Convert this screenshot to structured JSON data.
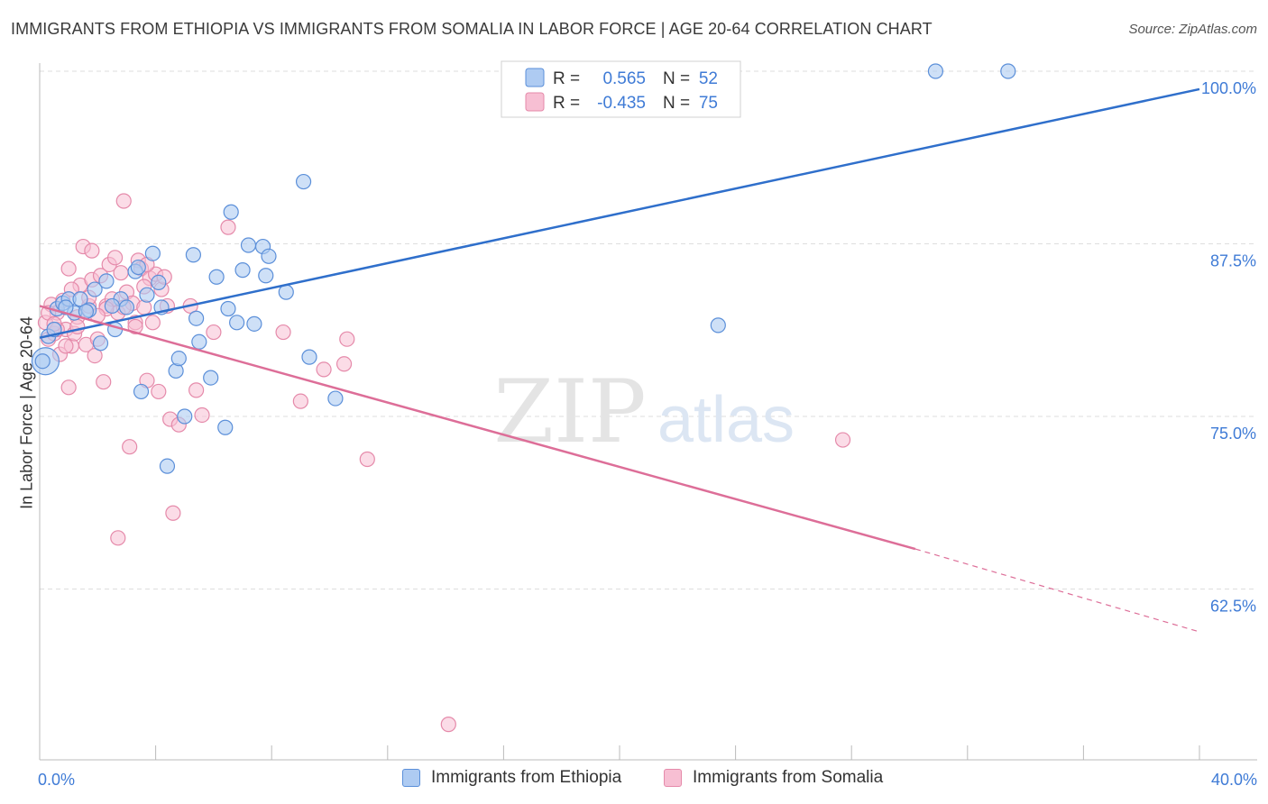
{
  "header": {
    "title": "IMMIGRANTS FROM ETHIOPIA VS IMMIGRANTS FROM SOMALIA IN LABOR FORCE | AGE 20-64 CORRELATION CHART",
    "source": "Source: ZipAtlas.com"
  },
  "watermark": {
    "zip": "ZIP",
    "atlas": "atlas"
  },
  "colors": {
    "ethiopia_fill": "#aecbf2",
    "ethiopia_stroke": "#5b8fd9",
    "ethiopia_line": "#2f6fcb",
    "somalia_fill": "#f7bfd3",
    "somalia_stroke": "#e58aaa",
    "somalia_line": "#dd6e98",
    "axis_label": "#3f7bd6",
    "grid": "#dddddd"
  },
  "legend_top": {
    "rows": [
      {
        "r_label": "R =",
        "r_value": "0.565",
        "n_label": "N =",
        "n_value": "52"
      },
      {
        "r_label": "R =",
        "r_value": "-0.435",
        "n_label": "N =",
        "n_value": "75"
      }
    ]
  },
  "legend_bottom": {
    "items": [
      {
        "label": "Immigrants from Ethiopia"
      },
      {
        "label": "Immigrants from Somalia"
      }
    ]
  },
  "chart_data": {
    "type": "scatter",
    "title": "IMMIGRANTS FROM ETHIOPIA VS IMMIGRANTS FROM SOMALIA IN LABOR FORCE | AGE 20-64 CORRELATION CHART",
    "xlabel": "",
    "ylabel": "In Labor Force | Age 20-64",
    "xlim": [
      0,
      40
    ],
    "ylim": [
      51.5,
      102
    ],
    "x_tick_labels": [
      {
        "value": 0,
        "label": "0.0%"
      },
      {
        "value": 40,
        "label": "40.0%"
      }
    ],
    "y_tick_labels": [
      {
        "value": 100,
        "label": "100.0%"
      },
      {
        "value": 87.5,
        "label": "87.5%"
      },
      {
        "value": 75,
        "label": "75.0%"
      },
      {
        "value": 62.5,
        "label": "62.5%"
      }
    ],
    "grid": true,
    "legend_position": "top-center",
    "series": [
      {
        "name": "Immigrants from Ethiopia",
        "R": 0.565,
        "N": 52,
        "trend": {
          "x": [
            0,
            40
          ],
          "y": [
            80.7,
            98.7
          ]
        },
        "points": [
          [
            0.2,
            79.0
          ],
          [
            0.3,
            80.8
          ],
          [
            0.5,
            81.3
          ],
          [
            0.6,
            82.8
          ],
          [
            0.8,
            83.2
          ],
          [
            1.0,
            83.5
          ],
          [
            1.2,
            82.5
          ],
          [
            1.4,
            83.5
          ],
          [
            1.7,
            82.7
          ],
          [
            1.9,
            84.2
          ],
          [
            2.1,
            80.3
          ],
          [
            2.3,
            84.8
          ],
          [
            2.6,
            81.3
          ],
          [
            2.8,
            83.5
          ],
          [
            3.0,
            82.9
          ],
          [
            3.3,
            85.5
          ],
          [
            3.5,
            76.8
          ],
          [
            3.7,
            83.8
          ],
          [
            3.9,
            86.8
          ],
          [
            4.1,
            84.7
          ],
          [
            4.2,
            82.9
          ],
          [
            4.4,
            71.4
          ],
          [
            4.7,
            78.3
          ],
          [
            4.8,
            79.2
          ],
          [
            5.0,
            75.0
          ],
          [
            5.3,
            86.7
          ],
          [
            5.4,
            82.1
          ],
          [
            5.5,
            80.4
          ],
          [
            5.9,
            77.8
          ],
          [
            6.1,
            85.1
          ],
          [
            6.4,
            74.2
          ],
          [
            6.5,
            82.8
          ],
          [
            6.6,
            89.8
          ],
          [
            6.8,
            81.8
          ],
          [
            7.0,
            85.6
          ],
          [
            7.2,
            87.4
          ],
          [
            7.4,
            81.7
          ],
          [
            7.7,
            87.3
          ],
          [
            7.8,
            85.2
          ],
          [
            7.9,
            86.6
          ],
          [
            8.5,
            84.0
          ],
          [
            9.1,
            92.0
          ],
          [
            9.3,
            79.3
          ],
          [
            10.2,
            76.3
          ],
          [
            23.4,
            81.6
          ],
          [
            30.9,
            100.0
          ],
          [
            33.4,
            100.0
          ],
          [
            0.1,
            79.0
          ],
          [
            0.9,
            82.9
          ],
          [
            2.5,
            83.0
          ],
          [
            3.4,
            85.8
          ],
          [
            1.6,
            82.6
          ]
        ]
      },
      {
        "name": "Immigrants from Somalia",
        "R": -0.435,
        "N": 75,
        "trend": {
          "x": [
            0,
            30.2
          ],
          "y": [
            83.0,
            65.4
          ]
        },
        "trend_dashed": {
          "x": [
            30.2,
            40
          ],
          "y": [
            65.4,
            59.4
          ]
        },
        "points": [
          [
            0.2,
            81.8
          ],
          [
            0.3,
            80.6
          ],
          [
            0.4,
            83.1
          ],
          [
            0.5,
            81.0
          ],
          [
            0.6,
            82.5
          ],
          [
            0.7,
            79.5
          ],
          [
            0.8,
            83.4
          ],
          [
            0.9,
            81.3
          ],
          [
            1.0,
            77.1
          ],
          [
            1.1,
            80.1
          ],
          [
            1.2,
            81.0
          ],
          [
            1.3,
            82.2
          ],
          [
            1.4,
            84.5
          ],
          [
            1.5,
            87.3
          ],
          [
            1.6,
            80.2
          ],
          [
            1.7,
            83.0
          ],
          [
            1.8,
            84.9
          ],
          [
            1.9,
            79.4
          ],
          [
            2.0,
            80.6
          ],
          [
            2.1,
            85.2
          ],
          [
            2.2,
            77.5
          ],
          [
            2.3,
            83.0
          ],
          [
            2.4,
            86.0
          ],
          [
            2.5,
            83.5
          ],
          [
            2.6,
            86.5
          ],
          [
            2.7,
            82.5
          ],
          [
            2.8,
            85.4
          ],
          [
            2.9,
            90.6
          ],
          [
            3.0,
            84.0
          ],
          [
            3.1,
            72.8
          ],
          [
            3.2,
            83.2
          ],
          [
            3.3,
            81.8
          ],
          [
            3.4,
            86.3
          ],
          [
            3.5,
            85.7
          ],
          [
            3.6,
            82.9
          ],
          [
            3.7,
            77.6
          ],
          [
            3.8,
            85.0
          ],
          [
            3.9,
            81.8
          ],
          [
            4.0,
            85.3
          ],
          [
            4.1,
            76.8
          ],
          [
            4.2,
            84.2
          ],
          [
            4.3,
            85.1
          ],
          [
            4.5,
            74.8
          ],
          [
            4.6,
            68.0
          ],
          [
            4.8,
            74.4
          ],
          [
            5.2,
            83.0
          ],
          [
            5.4,
            76.9
          ],
          [
            5.6,
            75.1
          ],
          [
            6.0,
            81.1
          ],
          [
            6.5,
            88.7
          ],
          [
            8.4,
            81.1
          ],
          [
            9.0,
            76.1
          ],
          [
            9.8,
            78.4
          ],
          [
            10.5,
            78.8
          ],
          [
            10.6,
            80.6
          ],
          [
            11.3,
            71.9
          ],
          [
            14.1,
            52.7
          ],
          [
            27.7,
            73.3
          ],
          [
            2.7,
            66.2
          ],
          [
            1.0,
            85.7
          ],
          [
            0.3,
            82.5
          ],
          [
            1.3,
            81.5
          ],
          [
            2.3,
            82.8
          ],
          [
            3.6,
            84.4
          ],
          [
            0.6,
            81.3
          ],
          [
            1.8,
            87.0
          ],
          [
            2.0,
            82.3
          ],
          [
            0.9,
            80.1
          ],
          [
            4.4,
            83.0
          ],
          [
            3.3,
            81.5
          ],
          [
            1.1,
            84.2
          ],
          [
            2.9,
            82.9
          ],
          [
            0.5,
            81.7
          ],
          [
            1.7,
            83.6
          ],
          [
            3.7,
            86.0
          ]
        ]
      }
    ]
  }
}
